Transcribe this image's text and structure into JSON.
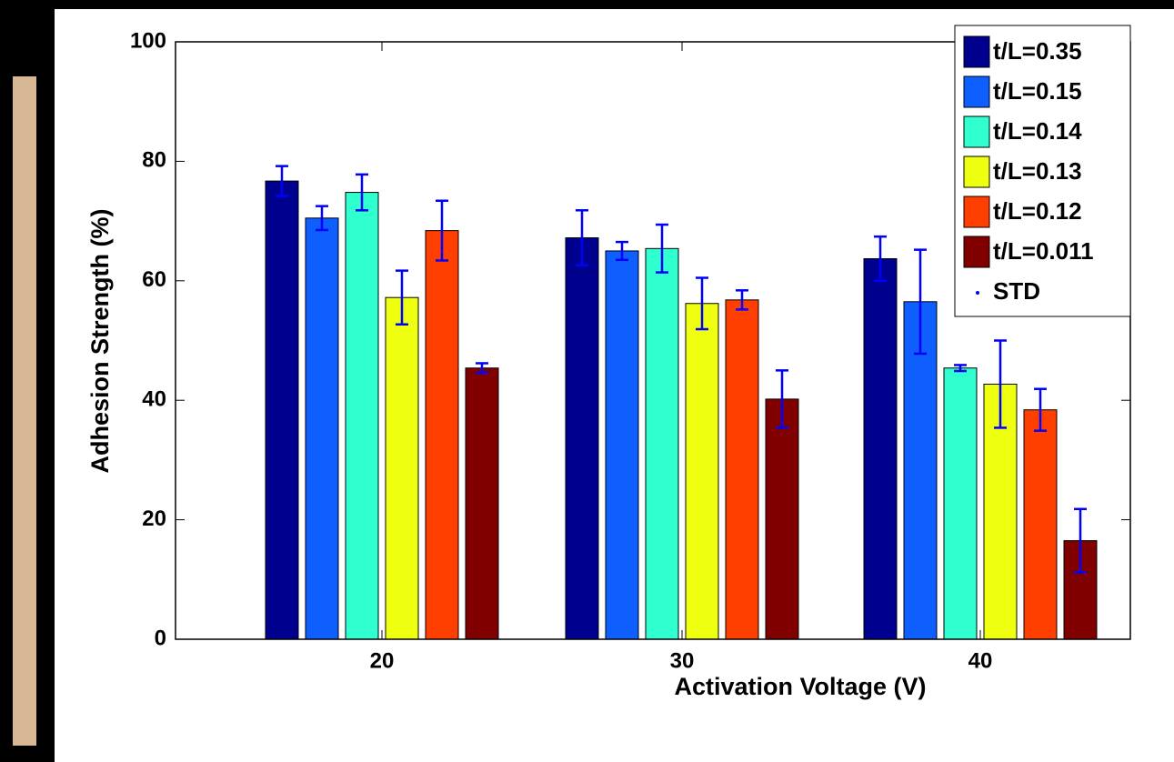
{
  "chart_data": {
    "type": "bar",
    "x_label": "Activation Voltage (V)",
    "y_label": "Adhesion Strength (%)",
    "categories": [
      "20",
      "30",
      "40"
    ],
    "series": [
      {
        "name": "t/L=0.35",
        "color": "#00008f",
        "values": [
          76.7,
          67.2,
          63.7
        ],
        "errors": [
          2.5,
          4.6,
          3.7
        ]
      },
      {
        "name": "t/L=0.15",
        "color": "#0f5fff",
        "values": [
          70.5,
          65.0,
          56.5
        ],
        "errors": [
          2.0,
          1.5,
          8.7
        ]
      },
      {
        "name": "t/L=0.14",
        "color": "#30ffd0",
        "values": [
          74.8,
          65.4,
          45.4
        ],
        "errors": [
          3.0,
          4.0,
          0.5
        ]
      },
      {
        "name": "t/L=0.13",
        "color": "#efff10",
        "values": [
          57.2,
          56.2,
          42.7
        ],
        "errors": [
          4.5,
          4.3,
          7.3
        ]
      },
      {
        "name": "t/L=0.12",
        "color": "#ff3f00",
        "values": [
          68.4,
          56.8,
          38.4
        ],
        "errors": [
          5.0,
          1.6,
          3.5
        ]
      },
      {
        "name": "t/L=0.011",
        "color": "#800000",
        "values": [
          45.4,
          40.2,
          16.5
        ],
        "errors": [
          0.8,
          4.8,
          5.3
        ]
      }
    ],
    "error_label": "STD",
    "error_color": "#0000ff",
    "ylim": [
      0,
      100
    ],
    "yticks": [
      0,
      20,
      40,
      60,
      80,
      100
    ],
    "grid": false,
    "legend": "upper right"
  }
}
